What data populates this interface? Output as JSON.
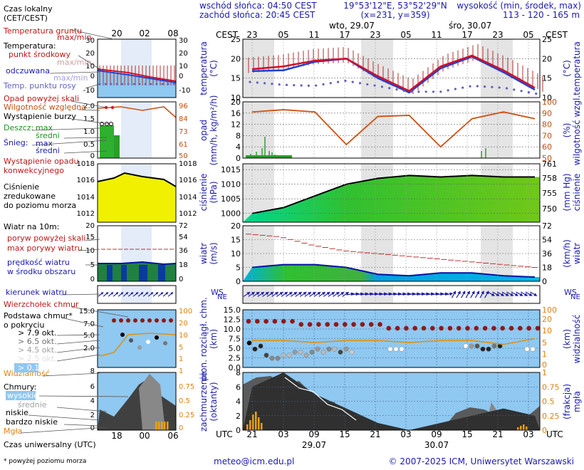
{
  "header": {
    "sunrise": "wschód słońca: 04:50 CEST",
    "sunset": "zachód słońca: 20:45 CEST",
    "coords": "19°53'12\"E, 53°52'29\"N",
    "grid": "(x=231, y=359)",
    "elev_title": "wysokość (min, środek, max)",
    "elev_values": "113 - 120 - 165 m",
    "day1": "wto, 29.07",
    "day2": "śro, 30.07",
    "cest": "CEST",
    "cest_hours": [
      "23",
      "05",
      "11",
      "17",
      "23",
      "05",
      "11",
      "17",
      "23",
      "05"
    ],
    "legend_time": "Czas lokalny\n(CET/CEST)",
    "legend_hours": [
      "20",
      "02",
      "08"
    ]
  },
  "legend": {
    "temp_ground": "Temperatura gruntu",
    "temp_maxmin1": "max/min",
    "temperatura": "Temperatura:",
    "mid_point": "punkt środkowy",
    "maxmin2": "max/min",
    "felt": "odczuwana",
    "maxmin3": "max/min",
    "dew": "Temp. punktu rosy",
    "rain_over": "Opad powyżej skali",
    "humidity": "Wilgotność względna",
    "storm": "Wystąpienie burzy",
    "rain": "Deszcz:",
    "rain_max": "max",
    "rain_mid": "średni",
    "snow": "Śnieg:",
    "snow_max": "max",
    "snow_mid": "średni",
    "convective": "Wystąpienie opadu\nkonwekcyjnego",
    "pressure": "Ciśnienie\nzredukowane\ndo poziomu morza",
    "wind": "Wiatr na 10m:",
    "gust_over": "poryw powyżej skali",
    "gust_max": "max porywy wiatru",
    "wind_mid": "prędkość wiatru\nw środku obszaru",
    "wind_dir": "kierunek wiatru",
    "cb_top": "Wierzchołek chmur",
    "cloud_base": "Podstawa chmur*\no pokryciu",
    "okt79": "> 7.9 okt.",
    "okt65": "> 6.5 okt.",
    "okt45": "> 4.5 okt.",
    "okt25": "> 2.5 okt.",
    "okt01": "> 0.1 okt.",
    "visibility": "Widzialność",
    "clouds": "Chmury:",
    "high": "wysokie",
    "middle": "średnie",
    "low": "niskie",
    "very_low": "bardzo niskie",
    "fog": "Mgła",
    "utc": "Czas uniwersalny (UTC)",
    "utc_hours": [
      "18",
      "00",
      "06"
    ],
    "footnote": "* powyżej poziomu morza"
  },
  "footer": {
    "email": "meteo@icm.edu.pl",
    "copyright": "© 2007-2025 ICM, Uniwersytet Warszawski",
    "utc": "UTC",
    "utc_hours": [
      "21",
      "03",
      "09",
      "15",
      "21",
      "03",
      "09",
      "15",
      "21",
      "03"
    ],
    "date1": "29.07",
    "date2": "30.07"
  },
  "panels": {
    "temp": {
      "left_label": "temperatura\n(°C)",
      "right_label": "(°C)\ntemperatura",
      "ticks": [
        "10",
        "15",
        "20",
        "25"
      ]
    },
    "precip": {
      "left_label": "opad\n(mm/h, kg/m²/h)",
      "right_label": "(%)\nwilgotność wzgl.",
      "ticks_left": [
        "0",
        "4",
        "8",
        "12",
        "16",
        "20"
      ],
      "ticks_right": [
        "50",
        "60",
        "70",
        "80",
        "90",
        "100"
      ]
    },
    "pressure": {
      "left_label": "ciśnienie\n(hPa)",
      "right_label": "(mm Hg)\nciśnienie",
      "ticks_left": [
        "1000",
        "1005",
        "1010",
        "1015"
      ],
      "ticks_right": [
        "750",
        "755",
        "758",
        "761"
      ]
    },
    "wind": {
      "left_label": "wiatr\n(m/s)",
      "right_label": "(km/h)\nwiatr",
      "ticks_left": [
        "0",
        "5",
        "10",
        "15",
        "20"
      ],
      "ticks_right": [
        "0",
        "18",
        "36",
        "54",
        "72"
      ]
    },
    "dir": {
      "ws": "WS",
      "ne": "NE"
    },
    "cloudbase": {
      "left_label": "pion. rozciągł. chm.\n(km)",
      "right_label": "(km)\nwidzialność",
      "ticks_left": [
        "0.0",
        "2.5",
        "5.0",
        "7.5",
        "10.0",
        "12.5",
        "15.0"
      ],
      "ticks_right": [
        "0",
        "1",
        "5",
        "10",
        "20",
        "100"
      ]
    },
    "clouds": {
      "left_label": "zachmurzenie\n(oktanty)",
      "right_label": "(frakcja)\nmgła",
      "ticks_left": [
        "0",
        "2",
        "4",
        "6",
        "8"
      ],
      "ticks_right": [
        "0",
        "0.25",
        "0.5",
        "0.75",
        "1"
      ]
    }
  },
  "chart_data": [
    {
      "type": "line",
      "title": "temperatura",
      "ylabel": "temperatura (°C)",
      "ylim": [
        10,
        25
      ],
      "x": [
        "29.07 21",
        "29.07 03",
        "29.07 09",
        "29.07 15",
        "29.07 21",
        "30.07 03",
        "30.07 09",
        "30.07 15",
        "30.07 21",
        "31.07 03"
      ],
      "series": [
        {
          "name": "punkt środkowy",
          "values": [
            17.3,
            18.0,
            19.5,
            20.0,
            15.5,
            11.7,
            18.0,
            20.8,
            17.0,
            12.5
          ]
        },
        {
          "name": "odczuwana",
          "values": [
            16.8,
            17.0,
            19.2,
            20.0,
            15.0,
            11.3,
            17.5,
            20.5,
            16.5,
            12.0
          ]
        },
        {
          "name": "Temp. punktu rosy",
          "values": [
            14.0,
            13.3,
            13.0,
            14.3,
            13.0,
            11.5,
            11.5,
            13.0,
            12.5,
            11.0
          ]
        }
      ]
    },
    {
      "type": "line",
      "title": "wilgotność wzgl.",
      "ylabel": "(%) wilgotność wzgl.",
      "ylim": [
        50,
        100
      ],
      "x": [
        "29.07 21",
        "29.07 03",
        "29.07 09",
        "29.07 15",
        "29.07 21",
        "30.07 03",
        "30.07 09",
        "30.07 15",
        "30.07 21",
        "31.07 03"
      ],
      "series": [
        {
          "name": "Wilgotność względna",
          "values": [
            91,
            93,
            91,
            62,
            87,
            88,
            60,
            85,
            91,
            85
          ]
        }
      ]
    },
    {
      "type": "area",
      "title": "ciśnienie",
      "ylabel": "ciśnienie (hPa)",
      "ylim": [
        997,
        1017
      ],
      "x": [
        "29.07 21",
        "29.07 03",
        "29.07 09",
        "29.07 15",
        "29.07 21",
        "30.07 03",
        "30.07 09",
        "30.07 15",
        "30.07 21",
        "31.07 03"
      ],
      "series": [
        {
          "name": "Ciśnienie",
          "values": [
            1000,
            1002,
            1006,
            1010,
            1012,
            1013,
            1012.5,
            1013,
            1012.5,
            1012.5
          ]
        }
      ]
    },
    {
      "type": "line",
      "title": "wiatr",
      "ylabel": "wiatr (m/s)",
      "ylim": [
        0,
        20
      ],
      "x": [
        "29.07 21",
        "29.07 03",
        "29.07 09",
        "29.07 15",
        "29.07 21",
        "30.07 03",
        "30.07 09",
        "30.07 15",
        "30.07 21",
        "31.07 03"
      ],
      "series": [
        {
          "name": "prędkość wiatru",
          "values": [
            5,
            6,
            6,
            5,
            2.5,
            2,
            3,
            3,
            2,
            1.5
          ]
        },
        {
          "name": "max porywy wiatru",
          "values": [
            17,
            16,
            13,
            11,
            10,
            9,
            8,
            7,
            6,
            5
          ]
        }
      ]
    },
    {
      "type": "line",
      "title": "widzialność",
      "ylabel": "(km) widzialność",
      "ylim": [
        0,
        15
      ],
      "x": [
        "29.07 21",
        "29.07 03",
        "29.07 09",
        "29.07 15",
        "29.07 21",
        "30.07 03",
        "30.07 09",
        "30.07 15",
        "30.07 21",
        "31.07 03"
      ],
      "series": [
        {
          "name": "Widzialność",
          "values": [
            7,
            7,
            6.5,
            7,
            7,
            6.5,
            7,
            7,
            6,
            7.5
          ]
        }
      ]
    },
    {
      "type": "area",
      "title": "zachmurzenie",
      "ylabel": "zachmurzenie (oktanty)",
      "ylim": [
        0,
        8
      ],
      "x": [
        "29.07 21",
        "29.07 03",
        "29.07 09",
        "29.07 15",
        "29.07 21",
        "30.07 03",
        "30.07 09",
        "30.07 15",
        "30.07 21",
        "31.07 03"
      ],
      "series": [
        {
          "name": "niskie",
          "values": [
            6,
            8,
            5,
            3,
            1,
            0,
            1,
            2,
            3,
            2
          ]
        },
        {
          "name": "Mgła",
          "values": [
            0.25,
            0,
            0,
            0,
            0,
            0,
            0,
            0,
            0,
            0.1
          ]
        }
      ]
    }
  ]
}
